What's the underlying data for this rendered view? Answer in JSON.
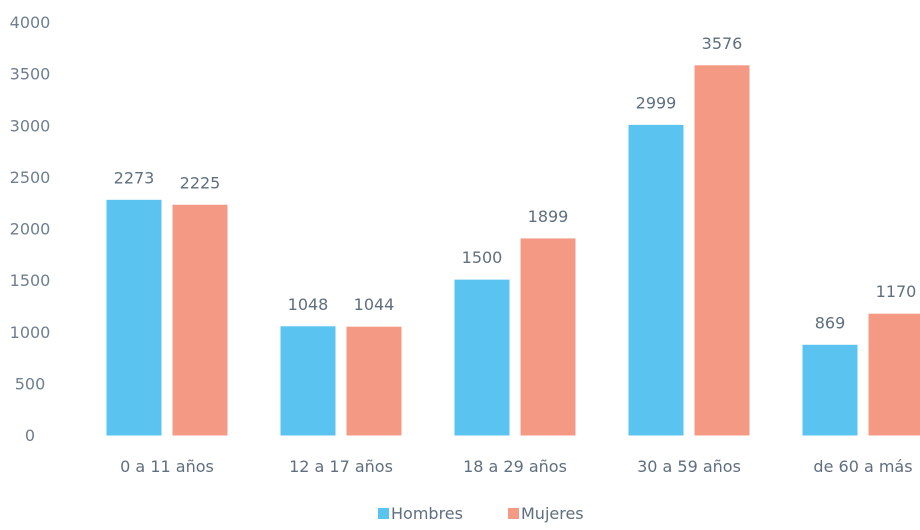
{
  "chart_data": {
    "type": "bar",
    "categories": [
      "0 a 11 años",
      "12 a 17 años",
      "18 a 29 años",
      "30 a 59 años",
      "de 60 a más"
    ],
    "series": [
      {
        "name": "Hombres",
        "values": [
          2273,
          1048,
          1500,
          2999,
          869
        ],
        "color": "#5bc3ef"
      },
      {
        "name": "Mujeres",
        "values": [
          2225,
          1044,
          1899,
          3576,
          1170
        ],
        "color": "#f49a84"
      }
    ],
    "yticks": [
      "0",
      "500",
      "1000",
      "1500",
      "2000",
      "2500",
      "3000",
      "3500",
      "4000"
    ],
    "ylim": [
      0,
      4000
    ],
    "grid": false,
    "legend": "bottom-center",
    "data_labels": true
  }
}
